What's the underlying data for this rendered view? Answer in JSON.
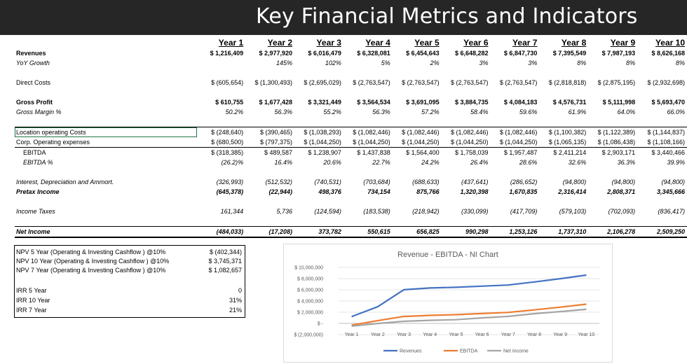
{
  "header": {
    "title": "Key Financial Metrics and Indicators"
  },
  "table": {
    "years": [
      "Year 1",
      "Year 2",
      "Year 3",
      "Year 4",
      "Year 5",
      "Year 6",
      "Year 7",
      "Year 8",
      "Year 9",
      "Year 10"
    ],
    "rows": [
      {
        "label": "Revenues",
        "values": [
          "$ 1,216,409",
          "$ 2,977,920",
          "$ 6,016,479",
          "$ 6,328,081",
          "$ 6,454,643",
          "$ 6,648,282",
          "$ 6,847,730",
          "$ 7,395,549",
          "$ 7,987,193",
          "$ 8,626,168"
        ]
      },
      {
        "label": "YoY Growth",
        "values": [
          "",
          "145%",
          "102%",
          "5%",
          "2%",
          "3%",
          "3%",
          "8%",
          "8%",
          "8%"
        ]
      },
      {
        "label": "Direct Costs",
        "values": [
          "$ (605,654)",
          "$ (1,300,493)",
          "$ (2,695,029)",
          "$ (2,763,547)",
          "$ (2,763,547)",
          "$ (2,763,547)",
          "$ (2,763,547)",
          "$ (2,818,818)",
          "$ (2,875,195)",
          "$ (2,932,698)"
        ]
      },
      {
        "label": "Gross Profit",
        "values": [
          "$ 610,755",
          "$ 1,677,428",
          "$ 3,321,449",
          "$ 3,564,534",
          "$ 3,691,095",
          "$ 3,884,735",
          "$ 4,084,183",
          "$ 4,576,731",
          "$ 5,111,998",
          "$ 5,693,470"
        ]
      },
      {
        "label": "Gross Margin %",
        "values": [
          "50.2%",
          "56.3%",
          "55.2%",
          "56.3%",
          "57.2%",
          "58.4%",
          "59.6%",
          "61.9%",
          "64.0%",
          "66.0%"
        ]
      },
      {
        "label": "Location operating Costs",
        "values": [
          "$ (248,640)",
          "$ (390,465)",
          "$ (1,038,293)",
          "$ (1,082,446)",
          "$ (1,082,446)",
          "$ (1,082,446)",
          "$ (1,082,446)",
          "$ (1,100,382)",
          "$ (1,122,389)",
          "$ (1,144,837)"
        ]
      },
      {
        "label": "Corp. Operating expenses",
        "values": [
          "$ (680,500)",
          "$ (797,375)",
          "$ (1,044,250)",
          "$ (1,044,250)",
          "$ (1,044,250)",
          "$ (1,044,250)",
          "$ (1,044,250)",
          "$ (1,065,135)",
          "$ (1,086,438)",
          "$ (1,108,166)"
        ]
      },
      {
        "label": "EBITDA",
        "values": [
          "$ (318,385)",
          "$ 489,587",
          "$ 1,238,907",
          "$ 1,437,838",
          "$ 1,564,400",
          "$ 1,758,039",
          "$ 1,957,487",
          "$ 2,411,214",
          "$ 2,903,171",
          "$ 3,440,466"
        ]
      },
      {
        "label": "EBITDA %",
        "values": [
          "(26.2)%",
          "16.4%",
          "20.6%",
          "22.7%",
          "24.2%",
          "26.4%",
          "28.6%",
          "32.6%",
          "36.3%",
          "39.9%"
        ]
      },
      {
        "label": "Interest, Depreciation and Ammort.",
        "values": [
          "(326,993)",
          "(512,532)",
          "(740,531)",
          "(703,684)",
          "(688,633)",
          "(437,641)",
          "(286,652)",
          "(94,800)",
          "(94,800)",
          "(94,800)"
        ]
      },
      {
        "label": "Pretax Income",
        "values": [
          "(645,378)",
          "(22,944)",
          "498,376",
          "734,154",
          "875,766",
          "1,320,398",
          "1,670,835",
          "2,316,414",
          "2,808,371",
          "3,345,666"
        ]
      },
      {
        "label": "Income Taxes",
        "values": [
          "161,344",
          "5,736",
          "(124,594)",
          "(183,538)",
          "(218,942)",
          "(330,099)",
          "(417,709)",
          "(579,103)",
          "(702,093)",
          "(836,417)"
        ]
      },
      {
        "label": "Net Income",
        "values": [
          "(484,033)",
          "(17,208)",
          "373,782",
          "550,615",
          "656,825",
          "990,298",
          "1,253,126",
          "1,737,310",
          "2,106,278",
          "2,509,250"
        ]
      }
    ]
  },
  "metrics": [
    {
      "label": "NPV 5 Year (Operating & Investing Cashflow ) @10%",
      "value": "$ (402,344)"
    },
    {
      "label": "NPV 10 Year (Operating & Investing Cashflow ) @10%",
      "value": "$ 3,745,371"
    },
    {
      "label": "NPV 7 Year (Operating & Investing Cashflow ) @10%",
      "value": "$ 1,082,657"
    },
    {
      "label": "IRR 5 Year",
      "value": "0"
    },
    {
      "label": "IRR 10 Year",
      "value": "31%"
    },
    {
      "label": "IRR 7 Year",
      "value": "21%"
    }
  ],
  "chart_data": {
    "type": "line",
    "title": "Revenue - EBITDA - NI Chart",
    "categories": [
      "Year 1",
      "Year 2",
      "Year 3",
      "Year 4",
      "Year 5",
      "Year 6",
      "Year 7",
      "Year 8",
      "Year 9",
      "Year 10"
    ],
    "ylim": [
      -2000000,
      10000000
    ],
    "yticks": [
      -2000000,
      0,
      2000000,
      4000000,
      6000000,
      8000000,
      10000000
    ],
    "ytick_labels": [
      "$ (2,000,000)",
      "$ -",
      "$ 2,000,000",
      "$ 4,000,000",
      "$ 6,000,000",
      "$ 8,000,000",
      "$ 10,000,000"
    ],
    "grid": true,
    "legend": "bottom",
    "series": [
      {
        "name": "Revenues",
        "color": "#4472c4",
        "values": [
          1216409,
          2977920,
          6016479,
          6328081,
          6454643,
          6648282,
          6847730,
          7395549,
          7987193,
          8626168
        ]
      },
      {
        "name": "EBITDA",
        "color": "#ed7d31",
        "values": [
          -318385,
          489587,
          1238907,
          1437838,
          1564400,
          1758039,
          1957487,
          2411214,
          2903171,
          3440466
        ]
      },
      {
        "name": "Net Income",
        "color": "#a5a5a5",
        "values": [
          -484033,
          -17208,
          373782,
          550615,
          656825,
          990298,
          1253126,
          1737310,
          2106278,
          2509250
        ]
      }
    ]
  }
}
